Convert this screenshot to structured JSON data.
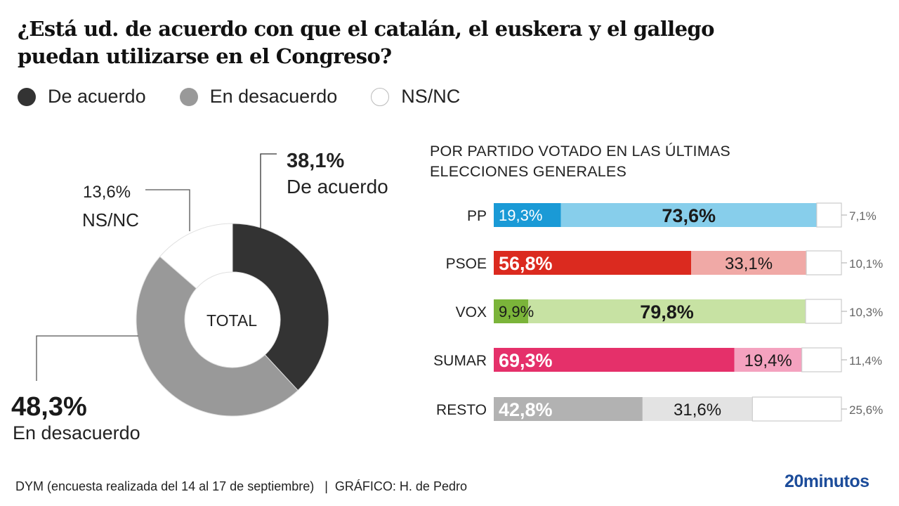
{
  "title_line1": "¿Está ud. de acuerdo con que el catalán, el euskera y el gallego",
  "title_line2": "puedan utilizarse en el Congreso?",
  "legend": [
    {
      "label": "De acuerdo",
      "color": "#333333",
      "stroke": "#333333"
    },
    {
      "label": "En desacuerdo",
      "color": "#999999",
      "stroke": "#999999"
    },
    {
      "label": "NS/NC",
      "color": "#ffffff",
      "stroke": "#bbbbbb"
    }
  ],
  "chart_data": [
    {
      "type": "pie",
      "variant": "donut",
      "center_label": "TOTAL",
      "slices": [
        {
          "label": "De acuerdo",
          "value": 38.1,
          "value_label": "38,1%",
          "color": "#333333"
        },
        {
          "label": "En desacuerdo",
          "value": 48.3,
          "value_label": "48,3%",
          "color": "#999999"
        },
        {
          "label": "NS/NC",
          "value": 13.6,
          "value_label": "13,6%",
          "color": "#ffffff"
        }
      ]
    },
    {
      "type": "bar",
      "orientation": "horizontal",
      "stacked": true,
      "title_line1": "POR PARTIDO VOTADO EN LAS ÚLTIMAS",
      "title_line2": "ELECCIONES GENERALES",
      "series_names": [
        "De acuerdo",
        "En desacuerdo",
        "NS/NC"
      ],
      "categories": [
        "PP",
        "PSOE",
        "VOX",
        "SUMAR",
        "RESTO"
      ],
      "rows": [
        {
          "label": "PP",
          "values": [
            19.3,
            73.6,
            7.1
          ],
          "labels": [
            "19,3%",
            "73,6%",
            "7,1%"
          ],
          "colors": [
            "#1a9ad6",
            "#87ceeb",
            "#ffffff"
          ],
          "text_colors": [
            "#ffffff",
            "#1a1a1a"
          ],
          "bold": [
            false,
            true
          ]
        },
        {
          "label": "PSOE",
          "values": [
            56.8,
            33.1,
            10.1
          ],
          "labels": [
            "56,8%",
            "33,1%",
            "10,1%"
          ],
          "colors": [
            "#db2a1f",
            "#f0a9a6",
            "#ffffff"
          ],
          "text_colors": [
            "#ffffff",
            "#1a1a1a"
          ],
          "bold": [
            true,
            false
          ]
        },
        {
          "label": "VOX",
          "values": [
            9.9,
            79.8,
            10.3
          ],
          "labels": [
            "9,9%",
            "79,8%",
            "10,3%"
          ],
          "colors": [
            "#7bb43a",
            "#c7e2a3",
            "#ffffff"
          ],
          "text_colors": [
            "#1a1a1a",
            "#1a1a1a"
          ],
          "bold": [
            false,
            true
          ]
        },
        {
          "label": "SUMAR",
          "values": [
            69.3,
            19.4,
            11.4
          ],
          "labels": [
            "69,3%",
            "19,4%",
            "11,4%"
          ],
          "colors": [
            "#e5306a",
            "#f4a2bf",
            "#ffffff"
          ],
          "text_colors": [
            "#ffffff",
            "#1a1a1a"
          ],
          "bold": [
            true,
            false
          ]
        },
        {
          "label": "RESTO",
          "values": [
            42.8,
            31.6,
            25.6
          ],
          "labels": [
            "42,8%",
            "31,6%",
            "25,6%"
          ],
          "colors": [
            "#b2b2b2",
            "#e3e3e3",
            "#ffffff"
          ],
          "text_colors": [
            "#ffffff",
            "#1a1a1a"
          ],
          "bold": [
            true,
            false
          ]
        }
      ]
    }
  ],
  "footer": {
    "source": "DYM (encuesta realizada del 14 al 17 de septiembre)   |  GRÁFICO: H. de Pedro",
    "brand": "20minutos"
  }
}
